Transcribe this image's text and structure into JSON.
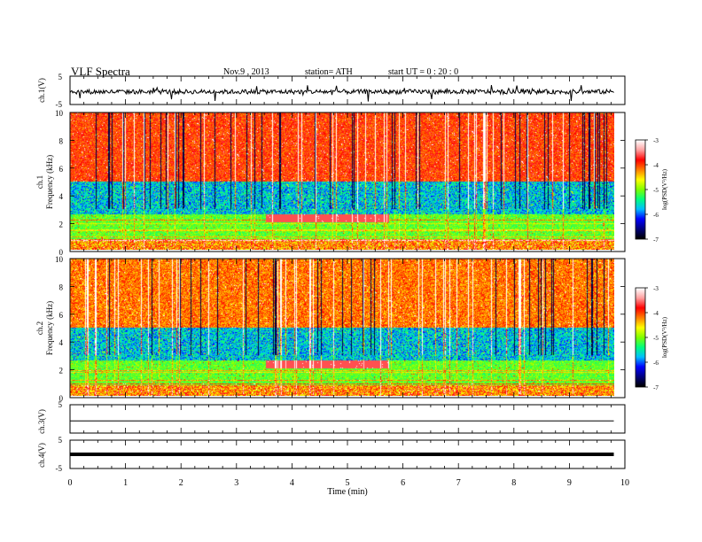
{
  "header": {
    "title": "VLF  Spectra",
    "date": "Nov.9  , 2013",
    "station": "station= ATH",
    "start": "start  UT =   0 : 20 : 0"
  },
  "chart_data": [
    {
      "type": "line",
      "panel": "ch1-waveform",
      "ylabel": "ch.1(V)",
      "ylim": [
        -5,
        5
      ],
      "tick_labels": [
        "5",
        "-5"
      ],
      "xlim": [
        0,
        9.8
      ],
      "baseline": -0.5,
      "description_values": "noisy waveform with spikes"
    },
    {
      "type": "heatmap",
      "panel": "ch1-spectrogram",
      "ylabel": "ch.1\nFrequency  (kHz)",
      "ylabel_line1": "ch.1",
      "ylabel_line2": "Frequency  (kHz)",
      "ylim": [
        0,
        10
      ],
      "yticks": [
        "0",
        "2",
        "4",
        "6",
        "8",
        "10"
      ],
      "xlim": [
        0,
        9.8
      ],
      "colorbar": {
        "label": "log(PSD(V²/Hz)",
        "ticks": [
          "-3",
          "-4",
          "-5",
          "-6",
          "-7"
        ],
        "range": [
          -7,
          -3
        ]
      }
    },
    {
      "type": "heatmap",
      "panel": "ch2-spectrogram",
      "ylabel_line1": "ch.2",
      "ylabel_line2": "Frequency  (kHz)",
      "ylim": [
        0,
        10
      ],
      "yticks": [
        "0",
        "2",
        "4",
        "6",
        "8",
        "10"
      ],
      "xlim": [
        0,
        9.8
      ],
      "colorbar": {
        "label": "log(PSD(V²/Hz)",
        "ticks": [
          "-3",
          "-4",
          "-5",
          "-6",
          "-7"
        ],
        "range": [
          -7,
          -3
        ]
      }
    },
    {
      "type": "line",
      "panel": "ch3-waveform",
      "ylabel": "ch.3(V)",
      "ylim": [
        -5,
        5
      ],
      "tick_labels": [
        "5"
      ],
      "baseline": -0.7
    },
    {
      "type": "line",
      "panel": "ch4-waveform",
      "ylabel": "ch.4(V)",
      "ylim": [
        -5,
        5
      ],
      "tick_labels": [
        "5",
        "-5"
      ],
      "baseline": 0.0
    }
  ],
  "xaxis": {
    "label": "Time  (min)",
    "ticks": [
      "0",
      "1",
      "2",
      "3",
      "4",
      "5",
      "6",
      "7",
      "8",
      "9",
      "10"
    ],
    "range": [
      0,
      10
    ]
  },
  "colors": {
    "colormap": [
      "#000000",
      "#00007f",
      "#0000ff",
      "#00bfff",
      "#00ff7f",
      "#7fff00",
      "#ffff00",
      "#ff7f00",
      "#ff0000",
      "#ff9f9f",
      "#ffffff"
    ]
  }
}
